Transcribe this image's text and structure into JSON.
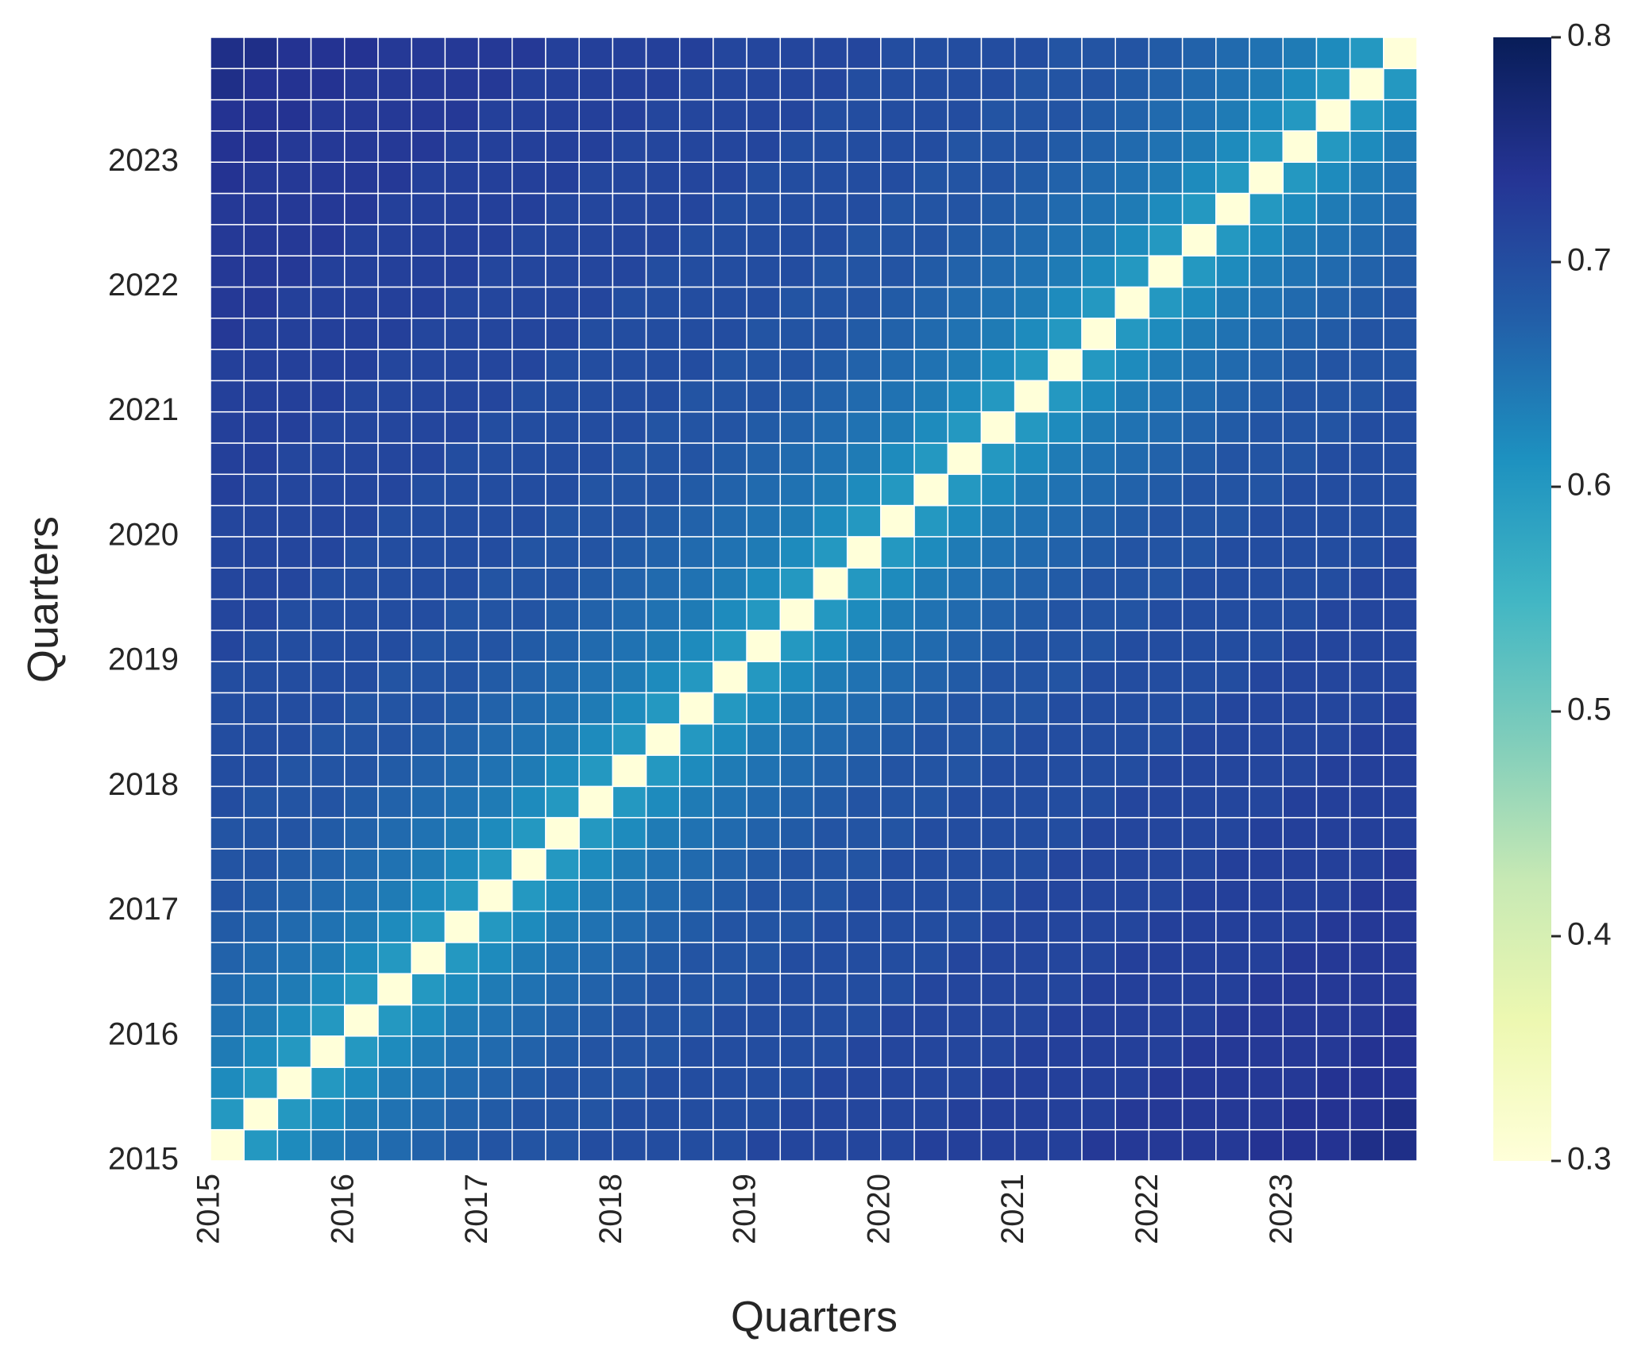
{
  "chart_data": {
    "type": "heatmap",
    "xlabel": "Quarters",
    "ylabel": "Quarters",
    "categories": [
      "2015",
      null,
      null,
      null,
      "2016",
      null,
      null,
      null,
      "2017",
      null,
      null,
      null,
      "2018",
      null,
      null,
      null,
      "2019",
      null,
      null,
      null,
      "2020",
      null,
      null,
      null,
      "2021",
      null,
      null,
      null,
      "2022",
      null,
      null,
      null,
      "2023",
      null,
      null,
      null
    ],
    "zlim": [
      0.3,
      0.8
    ],
    "zticks": [
      0.3,
      0.4,
      0.5,
      0.6,
      0.7,
      0.8
    ],
    "colorscale": [
      "#ffffd9",
      "#edf8b1",
      "#c7e9b4",
      "#7fcdbb",
      "#41b6c4",
      "#1d91c0",
      "#225ea8",
      "#253494",
      "#081d58"
    ],
    "z": [
      [
        0.3,
        0.6,
        0.62,
        0.64,
        0.65,
        0.66,
        0.67,
        0.68,
        0.69,
        0.69,
        0.69,
        0.7,
        0.7,
        0.7,
        0.7,
        0.7,
        0.71,
        0.71,
        0.71,
        0.71,
        0.71,
        0.72,
        0.72,
        0.72,
        0.72,
        0.72,
        0.73,
        0.73,
        0.73,
        0.73,
        0.73,
        0.74,
        0.74,
        0.74,
        0.75,
        0.75
      ],
      [
        0.6,
        0.3,
        0.6,
        0.62,
        0.64,
        0.65,
        0.66,
        0.67,
        0.68,
        0.69,
        0.69,
        0.69,
        0.7,
        0.7,
        0.7,
        0.7,
        0.7,
        0.71,
        0.71,
        0.71,
        0.71,
        0.71,
        0.72,
        0.72,
        0.72,
        0.72,
        0.72,
        0.73,
        0.73,
        0.73,
        0.73,
        0.73,
        0.74,
        0.74,
        0.74,
        0.75
      ],
      [
        0.62,
        0.6,
        0.3,
        0.6,
        0.62,
        0.64,
        0.65,
        0.66,
        0.67,
        0.68,
        0.69,
        0.69,
        0.69,
        0.7,
        0.7,
        0.7,
        0.7,
        0.7,
        0.71,
        0.71,
        0.71,
        0.71,
        0.71,
        0.72,
        0.72,
        0.72,
        0.72,
        0.72,
        0.73,
        0.73,
        0.73,
        0.73,
        0.73,
        0.74,
        0.74,
        0.74
      ],
      [
        0.64,
        0.62,
        0.6,
        0.3,
        0.6,
        0.62,
        0.64,
        0.65,
        0.66,
        0.67,
        0.68,
        0.69,
        0.69,
        0.69,
        0.7,
        0.7,
        0.7,
        0.7,
        0.7,
        0.71,
        0.71,
        0.71,
        0.71,
        0.71,
        0.72,
        0.72,
        0.72,
        0.72,
        0.72,
        0.73,
        0.73,
        0.73,
        0.73,
        0.73,
        0.74,
        0.74
      ],
      [
        0.65,
        0.64,
        0.62,
        0.6,
        0.3,
        0.6,
        0.62,
        0.64,
        0.65,
        0.66,
        0.67,
        0.68,
        0.69,
        0.69,
        0.69,
        0.7,
        0.7,
        0.7,
        0.7,
        0.7,
        0.71,
        0.71,
        0.71,
        0.71,
        0.71,
        0.72,
        0.72,
        0.72,
        0.72,
        0.72,
        0.73,
        0.73,
        0.73,
        0.73,
        0.73,
        0.74
      ],
      [
        0.66,
        0.65,
        0.64,
        0.62,
        0.6,
        0.3,
        0.6,
        0.62,
        0.64,
        0.65,
        0.66,
        0.67,
        0.68,
        0.69,
        0.69,
        0.69,
        0.7,
        0.7,
        0.7,
        0.7,
        0.7,
        0.71,
        0.71,
        0.71,
        0.71,
        0.71,
        0.72,
        0.72,
        0.72,
        0.72,
        0.72,
        0.73,
        0.73,
        0.73,
        0.73,
        0.73
      ],
      [
        0.67,
        0.66,
        0.65,
        0.64,
        0.62,
        0.6,
        0.3,
        0.6,
        0.62,
        0.64,
        0.65,
        0.66,
        0.67,
        0.68,
        0.69,
        0.69,
        0.69,
        0.7,
        0.7,
        0.7,
        0.7,
        0.7,
        0.71,
        0.71,
        0.71,
        0.71,
        0.71,
        0.72,
        0.72,
        0.72,
        0.72,
        0.72,
        0.73,
        0.73,
        0.73,
        0.73
      ],
      [
        0.68,
        0.67,
        0.66,
        0.65,
        0.64,
        0.62,
        0.6,
        0.3,
        0.6,
        0.62,
        0.64,
        0.65,
        0.66,
        0.67,
        0.68,
        0.69,
        0.69,
        0.69,
        0.7,
        0.7,
        0.7,
        0.7,
        0.7,
        0.71,
        0.71,
        0.71,
        0.71,
        0.71,
        0.72,
        0.72,
        0.72,
        0.72,
        0.72,
        0.73,
        0.73,
        0.73
      ],
      [
        0.69,
        0.68,
        0.67,
        0.66,
        0.65,
        0.64,
        0.62,
        0.6,
        0.3,
        0.6,
        0.62,
        0.64,
        0.65,
        0.66,
        0.67,
        0.68,
        0.69,
        0.69,
        0.69,
        0.7,
        0.7,
        0.7,
        0.7,
        0.7,
        0.71,
        0.71,
        0.71,
        0.71,
        0.71,
        0.72,
        0.72,
        0.72,
        0.72,
        0.72,
        0.73,
        0.73
      ],
      [
        0.69,
        0.69,
        0.68,
        0.67,
        0.66,
        0.65,
        0.64,
        0.62,
        0.6,
        0.3,
        0.6,
        0.62,
        0.64,
        0.65,
        0.66,
        0.67,
        0.68,
        0.69,
        0.69,
        0.69,
        0.7,
        0.7,
        0.7,
        0.7,
        0.7,
        0.71,
        0.71,
        0.71,
        0.71,
        0.71,
        0.72,
        0.72,
        0.72,
        0.72,
        0.72,
        0.73
      ],
      [
        0.69,
        0.69,
        0.69,
        0.68,
        0.67,
        0.66,
        0.65,
        0.64,
        0.62,
        0.6,
        0.3,
        0.6,
        0.62,
        0.64,
        0.65,
        0.66,
        0.67,
        0.68,
        0.69,
        0.69,
        0.69,
        0.7,
        0.7,
        0.7,
        0.7,
        0.7,
        0.71,
        0.71,
        0.71,
        0.71,
        0.71,
        0.72,
        0.72,
        0.72,
        0.72,
        0.72
      ],
      [
        0.7,
        0.69,
        0.69,
        0.69,
        0.68,
        0.67,
        0.66,
        0.65,
        0.64,
        0.62,
        0.6,
        0.3,
        0.6,
        0.62,
        0.64,
        0.65,
        0.66,
        0.67,
        0.68,
        0.69,
        0.69,
        0.69,
        0.7,
        0.7,
        0.7,
        0.7,
        0.7,
        0.71,
        0.71,
        0.71,
        0.71,
        0.71,
        0.72,
        0.72,
        0.72,
        0.72
      ],
      [
        0.7,
        0.7,
        0.69,
        0.69,
        0.69,
        0.68,
        0.67,
        0.66,
        0.65,
        0.64,
        0.62,
        0.6,
        0.3,
        0.6,
        0.62,
        0.64,
        0.65,
        0.66,
        0.67,
        0.68,
        0.69,
        0.69,
        0.69,
        0.7,
        0.7,
        0.7,
        0.7,
        0.7,
        0.71,
        0.71,
        0.71,
        0.71,
        0.71,
        0.72,
        0.72,
        0.72
      ],
      [
        0.7,
        0.7,
        0.7,
        0.69,
        0.69,
        0.69,
        0.68,
        0.67,
        0.66,
        0.65,
        0.64,
        0.62,
        0.6,
        0.3,
        0.6,
        0.62,
        0.64,
        0.65,
        0.66,
        0.67,
        0.68,
        0.69,
        0.69,
        0.69,
        0.7,
        0.7,
        0.7,
        0.7,
        0.7,
        0.71,
        0.71,
        0.71,
        0.71,
        0.71,
        0.72,
        0.72
      ],
      [
        0.7,
        0.7,
        0.7,
        0.7,
        0.69,
        0.69,
        0.69,
        0.68,
        0.67,
        0.66,
        0.65,
        0.64,
        0.62,
        0.6,
        0.3,
        0.6,
        0.62,
        0.64,
        0.65,
        0.66,
        0.67,
        0.68,
        0.69,
        0.69,
        0.69,
        0.7,
        0.7,
        0.7,
        0.7,
        0.7,
        0.71,
        0.71,
        0.71,
        0.71,
        0.71,
        0.72
      ],
      [
        0.7,
        0.7,
        0.7,
        0.7,
        0.7,
        0.69,
        0.69,
        0.69,
        0.68,
        0.67,
        0.66,
        0.65,
        0.64,
        0.62,
        0.6,
        0.3,
        0.6,
        0.62,
        0.64,
        0.65,
        0.66,
        0.67,
        0.68,
        0.69,
        0.69,
        0.69,
        0.7,
        0.7,
        0.7,
        0.7,
        0.7,
        0.71,
        0.71,
        0.71,
        0.71,
        0.71
      ],
      [
        0.71,
        0.7,
        0.7,
        0.7,
        0.7,
        0.7,
        0.69,
        0.69,
        0.69,
        0.68,
        0.67,
        0.66,
        0.65,
        0.64,
        0.62,
        0.6,
        0.3,
        0.6,
        0.62,
        0.64,
        0.65,
        0.66,
        0.67,
        0.68,
        0.69,
        0.69,
        0.69,
        0.7,
        0.7,
        0.7,
        0.7,
        0.7,
        0.71,
        0.71,
        0.71,
        0.71
      ],
      [
        0.71,
        0.71,
        0.7,
        0.7,
        0.7,
        0.7,
        0.7,
        0.69,
        0.69,
        0.69,
        0.68,
        0.67,
        0.66,
        0.65,
        0.64,
        0.62,
        0.6,
        0.3,
        0.6,
        0.62,
        0.64,
        0.65,
        0.66,
        0.67,
        0.68,
        0.69,
        0.69,
        0.69,
        0.7,
        0.7,
        0.7,
        0.7,
        0.7,
        0.71,
        0.71,
        0.71
      ],
      [
        0.71,
        0.71,
        0.71,
        0.7,
        0.7,
        0.7,
        0.7,
        0.7,
        0.69,
        0.69,
        0.69,
        0.68,
        0.67,
        0.66,
        0.65,
        0.64,
        0.62,
        0.6,
        0.3,
        0.6,
        0.62,
        0.64,
        0.65,
        0.66,
        0.67,
        0.68,
        0.69,
        0.69,
        0.69,
        0.7,
        0.7,
        0.7,
        0.7,
        0.7,
        0.71,
        0.71
      ],
      [
        0.71,
        0.71,
        0.71,
        0.71,
        0.7,
        0.7,
        0.7,
        0.7,
        0.7,
        0.69,
        0.69,
        0.69,
        0.68,
        0.67,
        0.66,
        0.65,
        0.64,
        0.62,
        0.6,
        0.3,
        0.6,
        0.62,
        0.64,
        0.65,
        0.66,
        0.67,
        0.68,
        0.69,
        0.69,
        0.69,
        0.7,
        0.7,
        0.7,
        0.7,
        0.7,
        0.71
      ],
      [
        0.71,
        0.71,
        0.71,
        0.71,
        0.71,
        0.7,
        0.7,
        0.7,
        0.7,
        0.7,
        0.69,
        0.69,
        0.69,
        0.68,
        0.67,
        0.66,
        0.65,
        0.64,
        0.62,
        0.6,
        0.3,
        0.6,
        0.62,
        0.64,
        0.65,
        0.66,
        0.67,
        0.68,
        0.69,
        0.69,
        0.69,
        0.7,
        0.7,
        0.7,
        0.7,
        0.7
      ],
      [
        0.72,
        0.71,
        0.71,
        0.71,
        0.71,
        0.71,
        0.7,
        0.7,
        0.7,
        0.7,
        0.7,
        0.69,
        0.69,
        0.69,
        0.68,
        0.67,
        0.66,
        0.65,
        0.64,
        0.62,
        0.6,
        0.3,
        0.6,
        0.62,
        0.64,
        0.65,
        0.66,
        0.67,
        0.68,
        0.69,
        0.69,
        0.69,
        0.7,
        0.7,
        0.7,
        0.7
      ],
      [
        0.72,
        0.72,
        0.71,
        0.71,
        0.71,
        0.71,
        0.71,
        0.7,
        0.7,
        0.7,
        0.7,
        0.7,
        0.69,
        0.69,
        0.69,
        0.68,
        0.67,
        0.66,
        0.65,
        0.64,
        0.62,
        0.6,
        0.3,
        0.6,
        0.62,
        0.64,
        0.65,
        0.66,
        0.67,
        0.68,
        0.69,
        0.69,
        0.69,
        0.7,
        0.7,
        0.7
      ],
      [
        0.72,
        0.72,
        0.72,
        0.71,
        0.71,
        0.71,
        0.71,
        0.71,
        0.7,
        0.7,
        0.7,
        0.7,
        0.7,
        0.69,
        0.69,
        0.69,
        0.68,
        0.67,
        0.66,
        0.65,
        0.64,
        0.62,
        0.6,
        0.3,
        0.6,
        0.62,
        0.64,
        0.65,
        0.66,
        0.67,
        0.68,
        0.69,
        0.69,
        0.69,
        0.7,
        0.7
      ],
      [
        0.72,
        0.72,
        0.72,
        0.72,
        0.71,
        0.71,
        0.71,
        0.71,
        0.71,
        0.7,
        0.7,
        0.7,
        0.7,
        0.7,
        0.69,
        0.69,
        0.69,
        0.68,
        0.67,
        0.66,
        0.65,
        0.64,
        0.62,
        0.6,
        0.3,
        0.6,
        0.62,
        0.64,
        0.65,
        0.66,
        0.67,
        0.68,
        0.69,
        0.69,
        0.69,
        0.7
      ],
      [
        0.72,
        0.72,
        0.72,
        0.72,
        0.72,
        0.71,
        0.71,
        0.71,
        0.71,
        0.71,
        0.7,
        0.7,
        0.7,
        0.7,
        0.7,
        0.69,
        0.69,
        0.69,
        0.68,
        0.67,
        0.66,
        0.65,
        0.64,
        0.62,
        0.6,
        0.3,
        0.6,
        0.62,
        0.64,
        0.65,
        0.66,
        0.67,
        0.68,
        0.69,
        0.69,
        0.69
      ],
      [
        0.73,
        0.72,
        0.72,
        0.72,
        0.72,
        0.72,
        0.71,
        0.71,
        0.71,
        0.71,
        0.71,
        0.7,
        0.7,
        0.7,
        0.7,
        0.7,
        0.69,
        0.69,
        0.69,
        0.68,
        0.67,
        0.66,
        0.65,
        0.64,
        0.62,
        0.6,
        0.3,
        0.6,
        0.62,
        0.64,
        0.65,
        0.66,
        0.67,
        0.68,
        0.69,
        0.69
      ],
      [
        0.73,
        0.73,
        0.72,
        0.72,
        0.72,
        0.72,
        0.72,
        0.71,
        0.71,
        0.71,
        0.71,
        0.71,
        0.7,
        0.7,
        0.7,
        0.7,
        0.7,
        0.69,
        0.69,
        0.69,
        0.68,
        0.67,
        0.66,
        0.65,
        0.64,
        0.62,
        0.6,
        0.3,
        0.6,
        0.62,
        0.64,
        0.65,
        0.66,
        0.67,
        0.68,
        0.69
      ],
      [
        0.73,
        0.73,
        0.73,
        0.72,
        0.72,
        0.72,
        0.72,
        0.72,
        0.71,
        0.71,
        0.71,
        0.71,
        0.71,
        0.7,
        0.7,
        0.7,
        0.7,
        0.7,
        0.69,
        0.69,
        0.69,
        0.68,
        0.67,
        0.66,
        0.65,
        0.64,
        0.62,
        0.6,
        0.3,
        0.6,
        0.62,
        0.64,
        0.65,
        0.66,
        0.67,
        0.68
      ],
      [
        0.73,
        0.73,
        0.73,
        0.73,
        0.72,
        0.72,
        0.72,
        0.72,
        0.72,
        0.71,
        0.71,
        0.71,
        0.71,
        0.71,
        0.7,
        0.7,
        0.7,
        0.7,
        0.7,
        0.69,
        0.69,
        0.69,
        0.68,
        0.67,
        0.66,
        0.65,
        0.64,
        0.62,
        0.6,
        0.3,
        0.6,
        0.62,
        0.64,
        0.65,
        0.66,
        0.67
      ],
      [
        0.73,
        0.73,
        0.73,
        0.73,
        0.73,
        0.72,
        0.72,
        0.72,
        0.72,
        0.72,
        0.71,
        0.71,
        0.71,
        0.71,
        0.71,
        0.7,
        0.7,
        0.7,
        0.7,
        0.7,
        0.69,
        0.69,
        0.69,
        0.68,
        0.67,
        0.66,
        0.65,
        0.64,
        0.62,
        0.6,
        0.3,
        0.6,
        0.62,
        0.64,
        0.65,
        0.66
      ],
      [
        0.74,
        0.73,
        0.73,
        0.73,
        0.73,
        0.73,
        0.72,
        0.72,
        0.72,
        0.72,
        0.72,
        0.71,
        0.71,
        0.71,
        0.71,
        0.71,
        0.7,
        0.7,
        0.7,
        0.7,
        0.7,
        0.69,
        0.69,
        0.69,
        0.68,
        0.67,
        0.66,
        0.65,
        0.64,
        0.62,
        0.6,
        0.3,
        0.6,
        0.62,
        0.64,
        0.65
      ],
      [
        0.74,
        0.74,
        0.73,
        0.73,
        0.73,
        0.73,
        0.73,
        0.72,
        0.72,
        0.72,
        0.72,
        0.72,
        0.71,
        0.71,
        0.71,
        0.71,
        0.71,
        0.7,
        0.7,
        0.7,
        0.7,
        0.7,
        0.69,
        0.69,
        0.69,
        0.68,
        0.67,
        0.66,
        0.65,
        0.64,
        0.62,
        0.6,
        0.3,
        0.6,
        0.62,
        0.64
      ],
      [
        0.74,
        0.74,
        0.74,
        0.73,
        0.73,
        0.73,
        0.73,
        0.73,
        0.72,
        0.72,
        0.72,
        0.72,
        0.72,
        0.71,
        0.71,
        0.71,
        0.71,
        0.71,
        0.7,
        0.7,
        0.7,
        0.7,
        0.7,
        0.69,
        0.69,
        0.69,
        0.68,
        0.67,
        0.66,
        0.65,
        0.64,
        0.62,
        0.6,
        0.3,
        0.6,
        0.62
      ],
      [
        0.75,
        0.74,
        0.74,
        0.74,
        0.73,
        0.73,
        0.73,
        0.73,
        0.73,
        0.72,
        0.72,
        0.72,
        0.72,
        0.72,
        0.71,
        0.71,
        0.71,
        0.71,
        0.71,
        0.7,
        0.7,
        0.7,
        0.7,
        0.7,
        0.69,
        0.69,
        0.69,
        0.68,
        0.67,
        0.66,
        0.65,
        0.64,
        0.62,
        0.6,
        0.3,
        0.6
      ],
      [
        0.75,
        0.75,
        0.74,
        0.74,
        0.74,
        0.73,
        0.73,
        0.73,
        0.73,
        0.73,
        0.72,
        0.72,
        0.72,
        0.72,
        0.72,
        0.71,
        0.71,
        0.71,
        0.71,
        0.71,
        0.7,
        0.7,
        0.7,
        0.7,
        0.7,
        0.69,
        0.69,
        0.69,
        0.68,
        0.67,
        0.66,
        0.65,
        0.64,
        0.62,
        0.6,
        0.3
      ]
    ]
  }
}
